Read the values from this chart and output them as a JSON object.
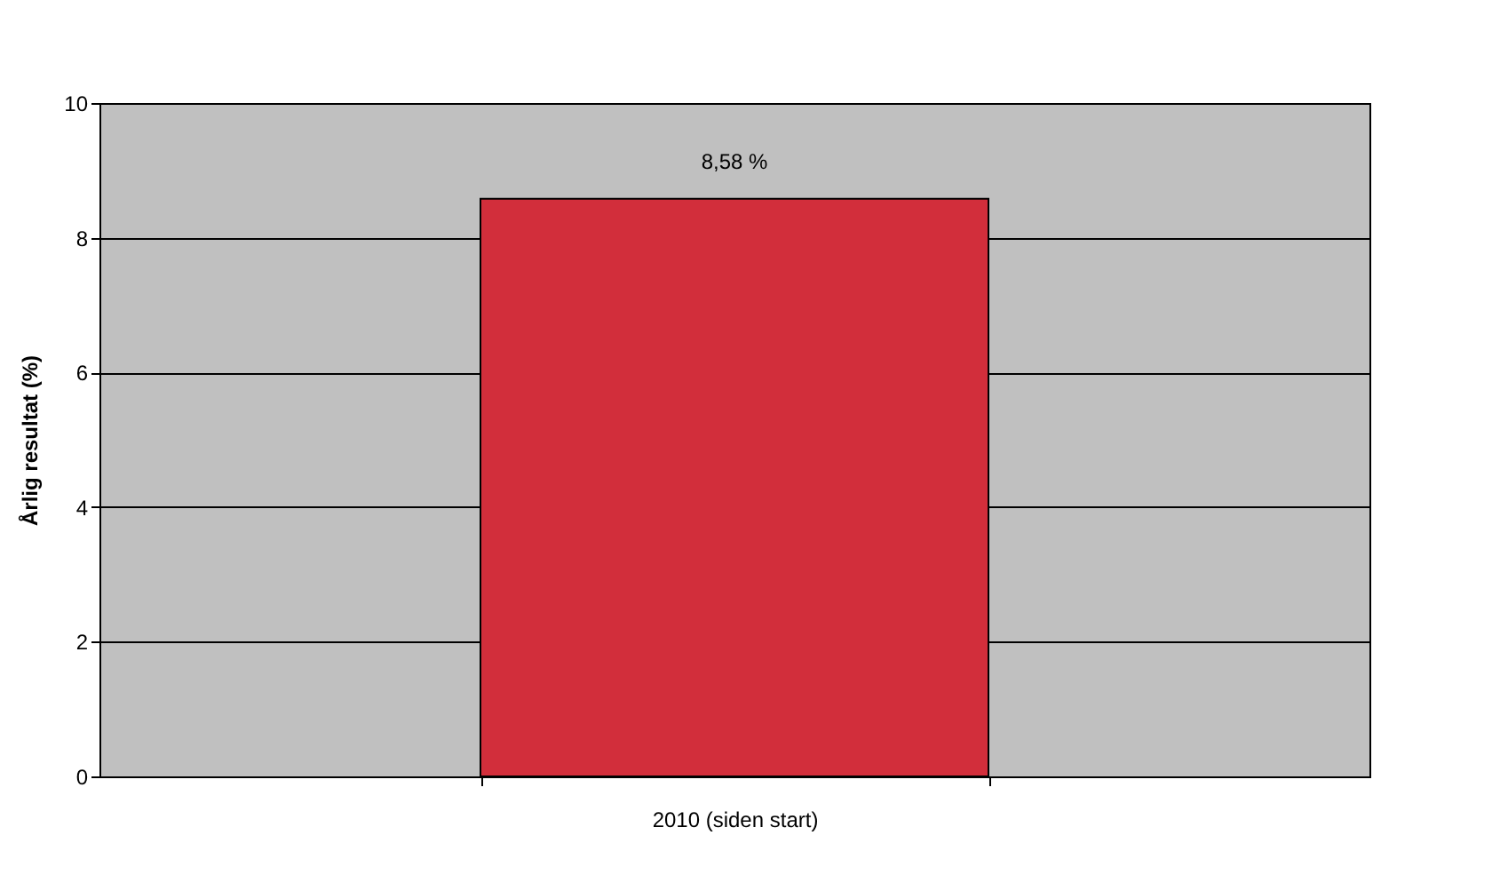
{
  "chart_data": {
    "type": "bar",
    "ylabel": "Årlig resultat (%)",
    "categories": [
      "2010 (siden start)"
    ],
    "values": [
      8.58
    ],
    "value_labels": [
      "8,58 %"
    ],
    "color": "#d22e3b",
    "ylim": [
      0,
      10
    ],
    "yticks": [
      0,
      2,
      4,
      6,
      8,
      10
    ],
    "grid": "y"
  }
}
